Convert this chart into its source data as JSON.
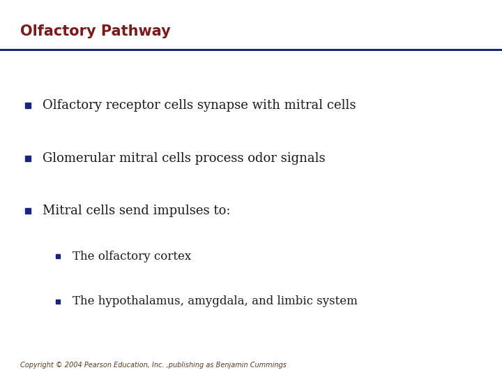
{
  "title": "Olfactory Pathway",
  "title_color": "#7B1A1A",
  "title_fontsize": 15,
  "background_color": "#FFFFFF",
  "header_line_color": "#1A237E",
  "bullet_color": "#1A237E",
  "text_color": "#1a1a1a",
  "bullet_items": [
    {
      "level": 0,
      "text": "Olfactory receptor cells synapse with mitral cells",
      "fy": 0.72
    },
    {
      "level": 0,
      "text": "Glomerular mitral cells process odor signals",
      "fy": 0.58
    },
    {
      "level": 0,
      "text": "Mitral cells send impulses to:",
      "fy": 0.44
    },
    {
      "level": 1,
      "text": "The olfactory cortex",
      "fy": 0.32
    },
    {
      "level": 1,
      "text": "The hypothalamus, amygdala, and limbic system",
      "fy": 0.2
    }
  ],
  "bullet_size_level0": 13,
  "bullet_size_level1": 12,
  "bullet_marker_size_level0": 6,
  "bullet_marker_size_level1": 5,
  "copyright_text": "Copyright © 2004 Pearson Education, Inc. ,publishing as Benjamin Cummings",
  "copyright_fontsize": 7,
  "copyright_color": "#5C3A1E"
}
